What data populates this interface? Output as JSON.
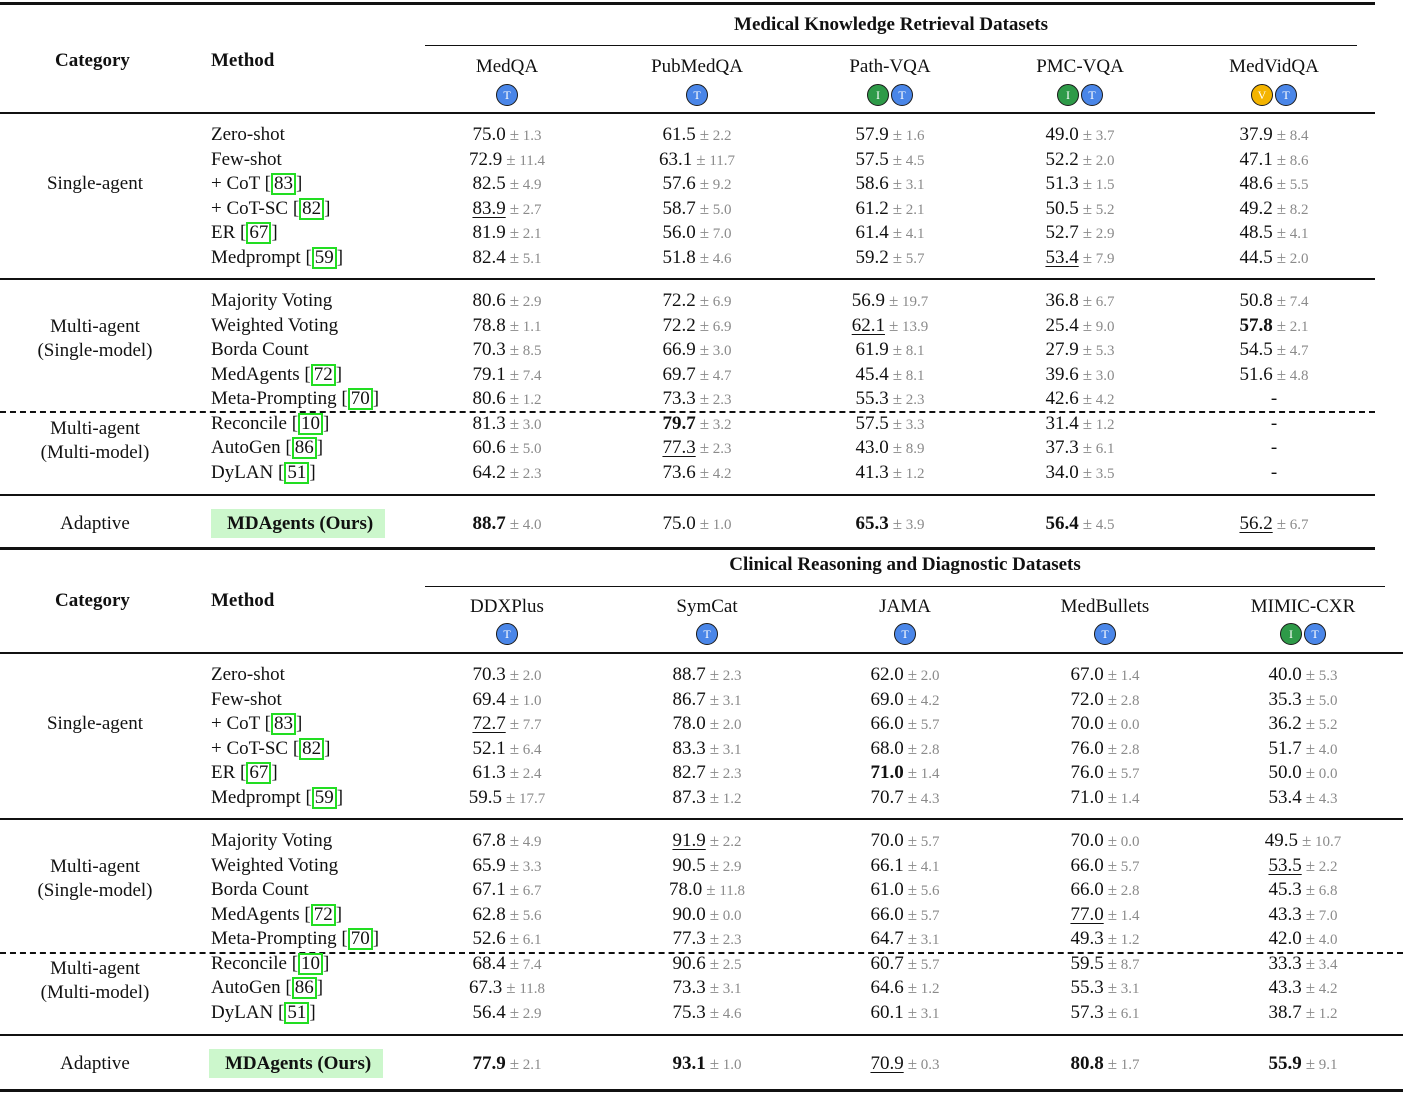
{
  "badge_colors": {
    "T": "#4a86e8",
    "I": "#2e9a48",
    "V": "#f4b400"
  },
  "highlight_color": "#ccf7cc",
  "ref_box_color": "#22dd22",
  "headers": {
    "category": "Category",
    "method": "Method",
    "ours": "MDAgents (Ours)"
  },
  "categories": {
    "single": "Single-agent",
    "multi_single_l1": "Multi-agent",
    "multi_single_l2": "(Single-model)",
    "multi_multi_l1": "Multi-agent",
    "multi_multi_l2": "(Multi-model)",
    "adaptive": "Adaptive"
  },
  "methods": [
    {
      "name": "Zero-shot",
      "ref": ""
    },
    {
      "name": "Few-shot",
      "ref": ""
    },
    {
      "name": "+ CoT",
      "ref": "83"
    },
    {
      "name": "+ CoT-SC",
      "ref": "82"
    },
    {
      "name": "ER",
      "ref": "67"
    },
    {
      "name": "Medprompt",
      "ref": "59"
    },
    {
      "name": "Majority Voting",
      "ref": ""
    },
    {
      "name": "Weighted Voting",
      "ref": ""
    },
    {
      "name": "Borda Count",
      "ref": ""
    },
    {
      "name": "MedAgents",
      "ref": "72"
    },
    {
      "name": "Meta-Prompting",
      "ref": "70"
    },
    {
      "name": "Reconcile",
      "ref": "10"
    },
    {
      "name": "AutoGen",
      "ref": "86"
    },
    {
      "name": "DyLAN",
      "ref": "51"
    },
    {
      "name": "MDAgents (Ours)",
      "ref": ""
    }
  ],
  "tables": [
    {
      "title": "Medical Knowledge Retrieval Datasets",
      "datasets": [
        {
          "name": "MedQA",
          "modalities": [
            "T"
          ]
        },
        {
          "name": "PubMedQA",
          "modalities": [
            "T"
          ]
        },
        {
          "name": "Path-VQA",
          "modalities": [
            "I",
            "T"
          ]
        },
        {
          "name": "PMC-VQA",
          "modalities": [
            "I",
            "T"
          ]
        },
        {
          "name": "MedVidQA",
          "modalities": [
            "V",
            "T"
          ]
        }
      ],
      "rows": [
        [
          [
            "75.0",
            "1.3",
            ""
          ],
          [
            "61.5",
            "2.2",
            ""
          ],
          [
            "57.9",
            "1.6",
            ""
          ],
          [
            "49.0",
            "3.7",
            ""
          ],
          [
            "37.9",
            "8.4",
            ""
          ]
        ],
        [
          [
            "72.9",
            "11.4",
            ""
          ],
          [
            "63.1",
            "11.7",
            ""
          ],
          [
            "57.5",
            "4.5",
            ""
          ],
          [
            "52.2",
            "2.0",
            ""
          ],
          [
            "47.1",
            "8.6",
            ""
          ]
        ],
        [
          [
            "82.5",
            "4.9",
            ""
          ],
          [
            "57.6",
            "9.2",
            ""
          ],
          [
            "58.6",
            "3.1",
            ""
          ],
          [
            "51.3",
            "1.5",
            ""
          ],
          [
            "48.6",
            "5.5",
            ""
          ]
        ],
        [
          [
            "83.9",
            "2.7",
            "u"
          ],
          [
            "58.7",
            "5.0",
            ""
          ],
          [
            "61.2",
            "2.1",
            ""
          ],
          [
            "50.5",
            "5.2",
            ""
          ],
          [
            "49.2",
            "8.2",
            ""
          ]
        ],
        [
          [
            "81.9",
            "2.1",
            ""
          ],
          [
            "56.0",
            "7.0",
            ""
          ],
          [
            "61.4",
            "4.1",
            ""
          ],
          [
            "52.7",
            "2.9",
            ""
          ],
          [
            "48.5",
            "4.1",
            ""
          ]
        ],
        [
          [
            "82.4",
            "5.1",
            ""
          ],
          [
            "51.8",
            "4.6",
            ""
          ],
          [
            "59.2",
            "5.7",
            ""
          ],
          [
            "53.4",
            "7.9",
            "u"
          ],
          [
            "44.5",
            "2.0",
            ""
          ]
        ],
        [
          [
            "80.6",
            "2.9",
            ""
          ],
          [
            "72.2",
            "6.9",
            ""
          ],
          [
            "56.9",
            "19.7",
            ""
          ],
          [
            "36.8",
            "6.7",
            ""
          ],
          [
            "50.8",
            "7.4",
            ""
          ]
        ],
        [
          [
            "78.8",
            "1.1",
            ""
          ],
          [
            "72.2",
            "6.9",
            ""
          ],
          [
            "62.1",
            "13.9",
            "u"
          ],
          [
            "25.4",
            "9.0",
            ""
          ],
          [
            "57.8",
            "2.1",
            "b"
          ]
        ],
        [
          [
            "70.3",
            "8.5",
            ""
          ],
          [
            "66.9",
            "3.0",
            ""
          ],
          [
            "61.9",
            "8.1",
            ""
          ],
          [
            "27.9",
            "5.3",
            ""
          ],
          [
            "54.5",
            "4.7",
            ""
          ]
        ],
        [
          [
            "79.1",
            "7.4",
            ""
          ],
          [
            "69.7",
            "4.7",
            ""
          ],
          [
            "45.4",
            "8.1",
            ""
          ],
          [
            "39.6",
            "3.0",
            ""
          ],
          [
            "51.6",
            "4.8",
            ""
          ]
        ],
        [
          [
            "80.6",
            "1.2",
            ""
          ],
          [
            "73.3",
            "2.3",
            ""
          ],
          [
            "55.3",
            "2.3",
            ""
          ],
          [
            "42.6",
            "4.2",
            ""
          ],
          [
            "-",
            "",
            ""
          ]
        ],
        [
          [
            "81.3",
            "3.0",
            ""
          ],
          [
            "79.7",
            "3.2",
            "b"
          ],
          [
            "57.5",
            "3.3",
            ""
          ],
          [
            "31.4",
            "1.2",
            ""
          ],
          [
            "-",
            "",
            ""
          ]
        ],
        [
          [
            "60.6",
            "5.0",
            ""
          ],
          [
            "77.3",
            "2.3",
            "u"
          ],
          [
            "43.0",
            "8.9",
            ""
          ],
          [
            "37.3",
            "6.1",
            ""
          ],
          [
            "-",
            "",
            ""
          ]
        ],
        [
          [
            "64.2",
            "2.3",
            ""
          ],
          [
            "73.6",
            "4.2",
            ""
          ],
          [
            "41.3",
            "1.2",
            ""
          ],
          [
            "34.0",
            "3.5",
            ""
          ],
          [
            "-",
            "",
            ""
          ]
        ],
        [
          [
            "88.7",
            "4.0",
            "b"
          ],
          [
            "75.0",
            "1.0",
            ""
          ],
          [
            "65.3",
            "3.9",
            "b"
          ],
          [
            "56.4",
            "4.5",
            "b"
          ],
          [
            "56.2",
            "6.7",
            "u"
          ]
        ]
      ]
    },
    {
      "title": "Clinical Reasoning and Diagnostic Datasets",
      "datasets": [
        {
          "name": "DDXPlus",
          "modalities": [
            "T"
          ]
        },
        {
          "name": "SymCat",
          "modalities": [
            "T"
          ]
        },
        {
          "name": "JAMA",
          "modalities": [
            "T"
          ]
        },
        {
          "name": "MedBullets",
          "modalities": [
            "T"
          ]
        },
        {
          "name": "MIMIC-CXR",
          "modalities": [
            "I",
            "T"
          ]
        }
      ],
      "rows": [
        [
          [
            "70.3",
            "2.0",
            ""
          ],
          [
            "88.7",
            "2.3",
            ""
          ],
          [
            "62.0",
            "2.0",
            ""
          ],
          [
            "67.0",
            "1.4",
            ""
          ],
          [
            "40.0",
            "5.3",
            ""
          ]
        ],
        [
          [
            "69.4",
            "1.0",
            ""
          ],
          [
            "86.7",
            "3.1",
            ""
          ],
          [
            "69.0",
            "4.2",
            ""
          ],
          [
            "72.0",
            "2.8",
            ""
          ],
          [
            "35.3",
            "5.0",
            ""
          ]
        ],
        [
          [
            "72.7",
            "7.7",
            "u"
          ],
          [
            "78.0",
            "2.0",
            ""
          ],
          [
            "66.0",
            "5.7",
            ""
          ],
          [
            "70.0",
            "0.0",
            ""
          ],
          [
            "36.2",
            "5.2",
            ""
          ]
        ],
        [
          [
            "52.1",
            "6.4",
            ""
          ],
          [
            "83.3",
            "3.1",
            ""
          ],
          [
            "68.0",
            "2.8",
            ""
          ],
          [
            "76.0",
            "2.8",
            ""
          ],
          [
            "51.7",
            "4.0",
            ""
          ]
        ],
        [
          [
            "61.3",
            "2.4",
            ""
          ],
          [
            "82.7",
            "2.3",
            ""
          ],
          [
            "71.0",
            "1.4",
            "b"
          ],
          [
            "76.0",
            "5.7",
            ""
          ],
          [
            "50.0",
            "0.0",
            ""
          ]
        ],
        [
          [
            "59.5",
            "17.7",
            ""
          ],
          [
            "87.3",
            "1.2",
            ""
          ],
          [
            "70.7",
            "4.3",
            ""
          ],
          [
            "71.0",
            "1.4",
            ""
          ],
          [
            "53.4",
            "4.3",
            ""
          ]
        ],
        [
          [
            "67.8",
            "4.9",
            ""
          ],
          [
            "91.9",
            "2.2",
            "u"
          ],
          [
            "70.0",
            "5.7",
            ""
          ],
          [
            "70.0",
            "0.0",
            ""
          ],
          [
            "49.5",
            "10.7",
            ""
          ]
        ],
        [
          [
            "65.9",
            "3.3",
            ""
          ],
          [
            "90.5",
            "2.9",
            ""
          ],
          [
            "66.1",
            "4.1",
            ""
          ],
          [
            "66.0",
            "5.7",
            ""
          ],
          [
            "53.5",
            "2.2",
            "u"
          ]
        ],
        [
          [
            "67.1",
            "6.7",
            ""
          ],
          [
            "78.0",
            "11.8",
            ""
          ],
          [
            "61.0",
            "5.6",
            ""
          ],
          [
            "66.0",
            "2.8",
            ""
          ],
          [
            "45.3",
            "6.8",
            ""
          ]
        ],
        [
          [
            "62.8",
            "5.6",
            ""
          ],
          [
            "90.0",
            "0.0",
            ""
          ],
          [
            "66.0",
            "5.7",
            ""
          ],
          [
            "77.0",
            "1.4",
            "u"
          ],
          [
            "43.3",
            "7.0",
            ""
          ]
        ],
        [
          [
            "52.6",
            "6.1",
            ""
          ],
          [
            "77.3",
            "2.3",
            ""
          ],
          [
            "64.7",
            "3.1",
            ""
          ],
          [
            "49.3",
            "1.2",
            ""
          ],
          [
            "42.0",
            "4.0",
            ""
          ]
        ],
        [
          [
            "68.4",
            "7.4",
            ""
          ],
          [
            "90.6",
            "2.5",
            ""
          ],
          [
            "60.7",
            "5.7",
            ""
          ],
          [
            "59.5",
            "8.7",
            ""
          ],
          [
            "33.3",
            "3.4",
            ""
          ]
        ],
        [
          [
            "67.3",
            "11.8",
            ""
          ],
          [
            "73.3",
            "3.1",
            ""
          ],
          [
            "64.6",
            "1.2",
            ""
          ],
          [
            "55.3",
            "3.1",
            ""
          ],
          [
            "43.3",
            "4.2",
            ""
          ]
        ],
        [
          [
            "56.4",
            "2.9",
            ""
          ],
          [
            "75.3",
            "4.6",
            ""
          ],
          [
            "60.1",
            "3.1",
            ""
          ],
          [
            "57.3",
            "6.1",
            ""
          ],
          [
            "38.7",
            "1.2",
            ""
          ]
        ],
        [
          [
            "77.9",
            "2.1",
            "b"
          ],
          [
            "93.1",
            "1.0",
            "b"
          ],
          [
            "70.9",
            "0.3",
            "u"
          ],
          [
            "80.8",
            "1.7",
            "b"
          ],
          [
            "55.9",
            "9.1",
            "b"
          ]
        ]
      ]
    }
  ]
}
